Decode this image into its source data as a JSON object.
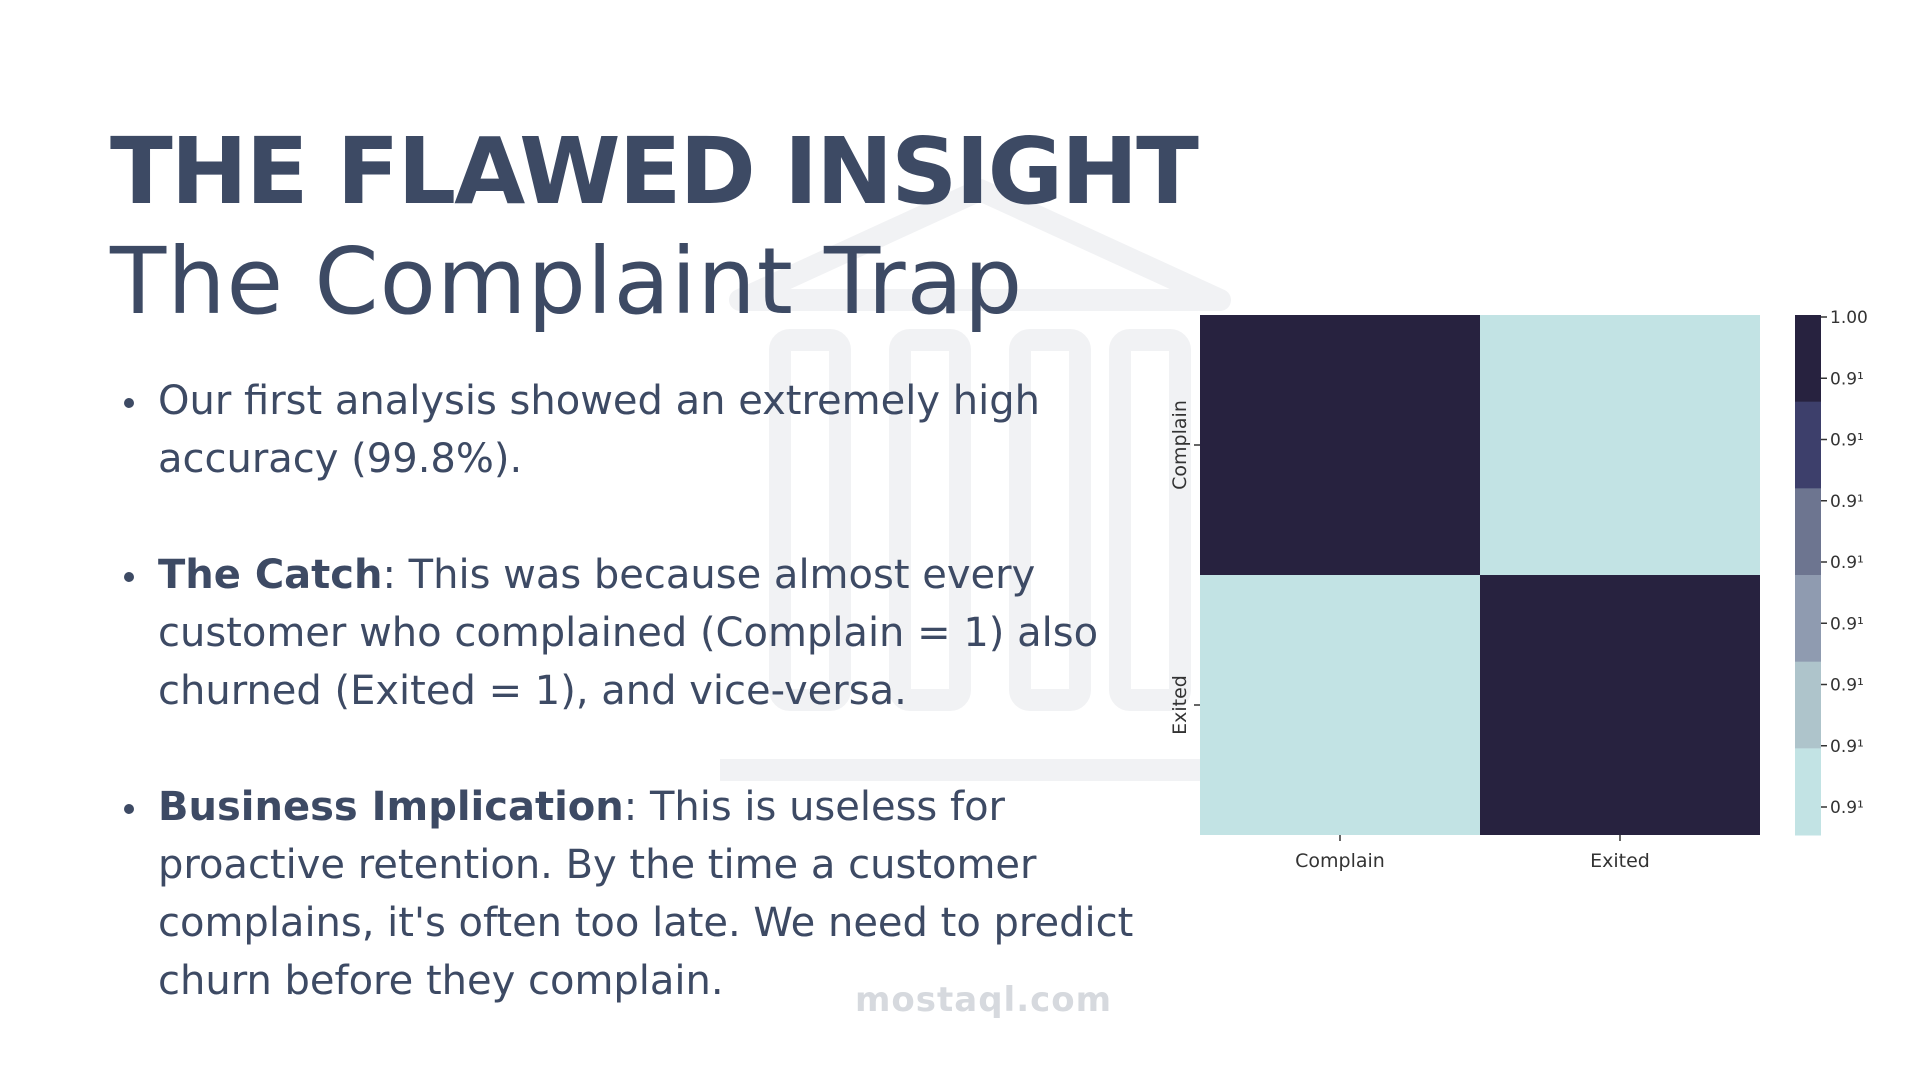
{
  "slide": {
    "title": "THE FLAWED INSIGHT",
    "subtitle": "The Complaint Trap",
    "bullets": [
      {
        "lead": "",
        "text": "Our first analysis showed an extremely high accuracy (99.8%)."
      },
      {
        "lead": "The Catch",
        "text": ": This was because almost every customer who complained (Complain = 1) also churned (Exited = 1), and vice-versa."
      },
      {
        "lead": "Business Implication",
        "text": ": This is useless for proactive retention. By the time a customer complains, it's often too late. We need to predict churn before they complain."
      }
    ]
  },
  "watermark": {
    "text": "mostaql.com",
    "icon": "bank-building-icon"
  },
  "chart_data": {
    "type": "heatmap",
    "x_labels": [
      "Complain",
      "Exited"
    ],
    "y_labels": [
      "Complain",
      "Exited"
    ],
    "values": [
      [
        1.0,
        0.996
      ],
      [
        0.996,
        1.0
      ]
    ],
    "colorbar": {
      "tick_labels": [
        "1.00",
        "0.9¹",
        "0.9¹",
        "0.9¹",
        "0.9¹",
        "0.9¹",
        "0.9¹",
        "0.9¹",
        "0.9¹"
      ],
      "levels": [
        "#27223f",
        "#3d3f6b",
        "#6d7590",
        "#8f9bb0",
        "#aec4cb",
        "#c2e3e4"
      ]
    },
    "colors": {
      "high": "#27223f",
      "low": "#c2e3e4"
    }
  }
}
